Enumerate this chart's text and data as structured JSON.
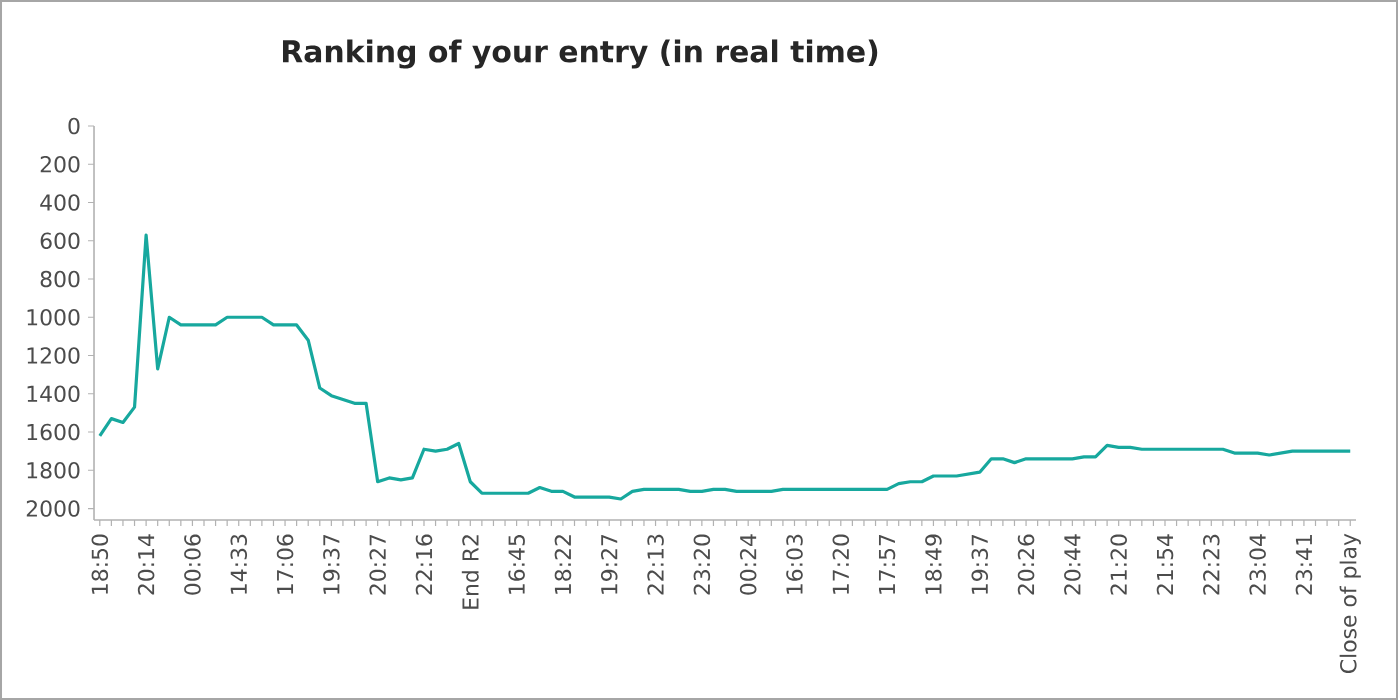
{
  "chart_data": {
    "type": "line",
    "title": "Ranking of your entry (in real time)",
    "categories": [
      "18:50",
      null,
      null,
      null,
      "20:14",
      null,
      null,
      null,
      "00:06",
      null,
      null,
      null,
      "14:33",
      null,
      null,
      null,
      "17:06",
      null,
      null,
      null,
      "19:37",
      null,
      null,
      null,
      "20:27",
      null,
      null,
      null,
      "22:16",
      null,
      null,
      null,
      "End R2",
      null,
      null,
      null,
      "16:45",
      null,
      null,
      null,
      "18:22",
      null,
      null,
      null,
      "19:27",
      null,
      null,
      null,
      "22:13",
      null,
      null,
      null,
      "23:20",
      null,
      null,
      null,
      "00:24",
      null,
      null,
      null,
      "16:03",
      null,
      null,
      null,
      "17:20",
      null,
      null,
      null,
      "17:57",
      null,
      null,
      null,
      "18:49",
      null,
      null,
      null,
      "19:37",
      null,
      null,
      null,
      "20:26",
      null,
      null,
      null,
      "20:44",
      null,
      null,
      null,
      "21:20",
      null,
      null,
      null,
      "21:54",
      null,
      null,
      null,
      "22:23",
      null,
      null,
      null,
      "23:04",
      null,
      null,
      null,
      "23:41",
      null,
      null,
      null,
      "Close of play"
    ],
    "values": [
      1620,
      1530,
      1550,
      1470,
      570,
      1270,
      1000,
      1040,
      1040,
      1040,
      1040,
      1000,
      1000,
      1000,
      1000,
      1040,
      1040,
      1040,
      1120,
      1370,
      1410,
      1430,
      1450,
      1450,
      1860,
      1840,
      1850,
      1840,
      1690,
      1700,
      1690,
      1660,
      1860,
      1920,
      1920,
      1920,
      1920,
      1920,
      1890,
      1910,
      1910,
      1940,
      1940,
      1940,
      1940,
      1950,
      1910,
      1900,
      1900,
      1900,
      1900,
      1910,
      1910,
      1900,
      1900,
      1910,
      1910,
      1910,
      1910,
      1900,
      1900,
      1900,
      1900,
      1900,
      1900,
      1900,
      1900,
      1900,
      1900,
      1870,
      1860,
      1860,
      1830,
      1830,
      1830,
      1820,
      1810,
      1740,
      1740,
      1760,
      1740,
      1740,
      1740,
      1740,
      1740,
      1730,
      1730,
      1670,
      1680,
      1680,
      1690,
      1690,
      1690,
      1690,
      1690,
      1690,
      1690,
      1690,
      1710,
      1710,
      1710,
      1720,
      1710,
      1700,
      1700,
      1700,
      1700,
      1700,
      1700
    ],
    "color": "#17a89e",
    "marker": "none",
    "ylim": [
      2060,
      0
    ],
    "yticks": [
      0,
      200,
      400,
      600,
      800,
      1000,
      1200,
      1400,
      1600,
      1800,
      2000
    ]
  }
}
